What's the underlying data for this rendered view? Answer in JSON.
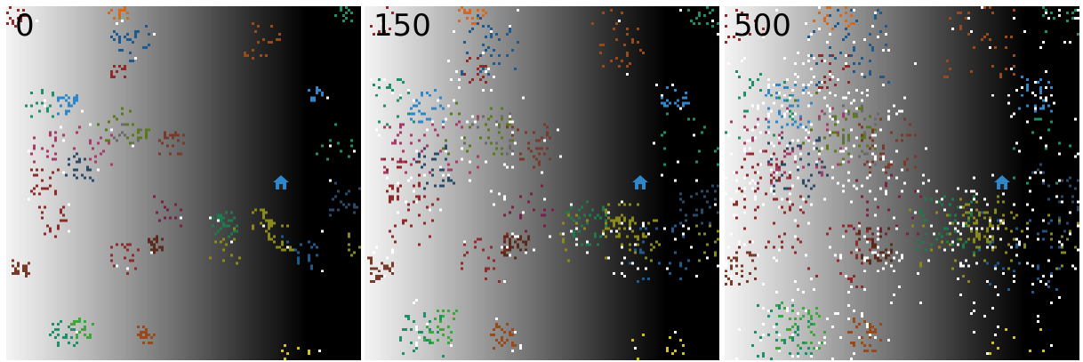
{
  "panels": [
    {
      "label": "0"
    },
    {
      "label": "150"
    },
    {
      "label": "500"
    }
  ],
  "colors": {
    "gradient_light": "#f2f2f2",
    "gradient_dark": "#000000",
    "house": "#2f86c8",
    "visited": "#ffffff"
  },
  "icons": {
    "house": "house-icon"
  }
}
